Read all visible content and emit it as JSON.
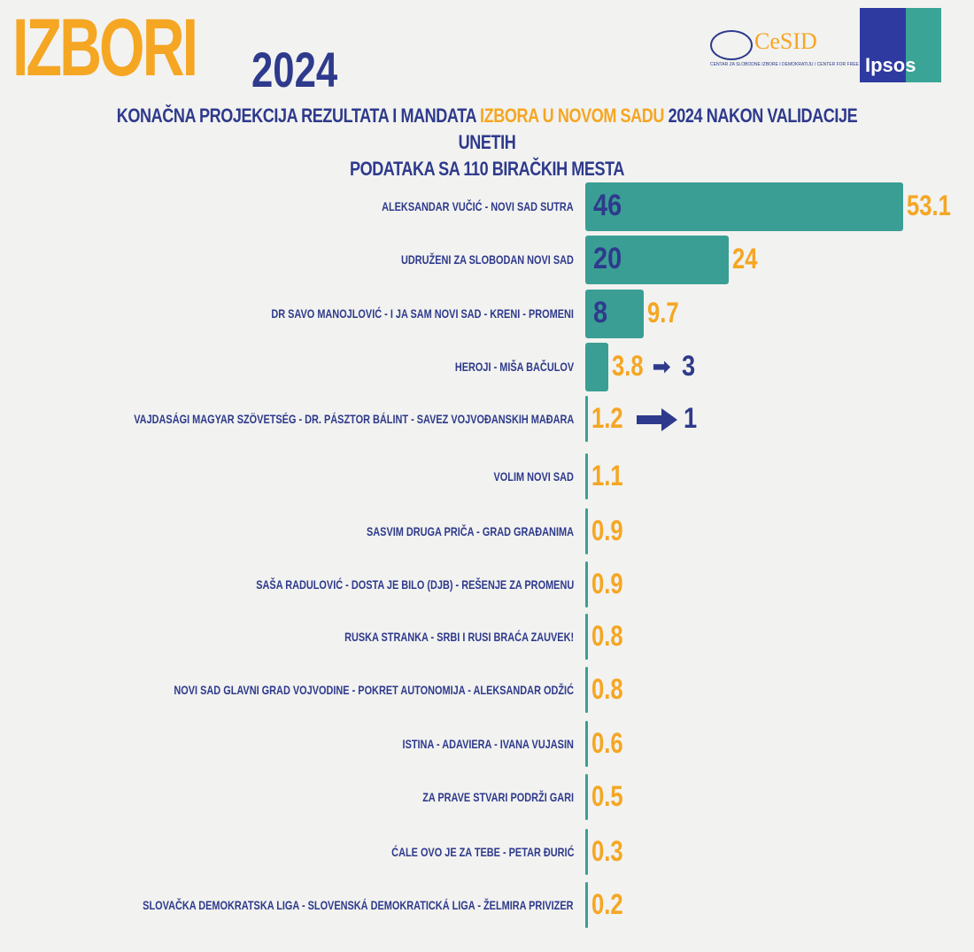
{
  "header": {
    "title_word": "IZBORI",
    "title_year": "2024",
    "subtitle_part1": "KONAČNA PROJEKCIJA REZULTATA I MANDATA ",
    "subtitle_highlight": "IZBORA U NOVOM SADU",
    "subtitle_part2": " 2024 NAKON VALIDACIJE UNETIH",
    "subtitle_line2": "PODATAKA SA 110 BIRAČKIH MESTA",
    "logos": [
      {
        "name": "CeSID",
        "text": "CeSID",
        "subtext": "CENTAR ZA SLOBODNE IZBORE I DEMOKRATIJU / CENTER FOR FREE ELECTIONS AND DEMOCRACY"
      },
      {
        "name": "Ipsos",
        "text": "Ipsos"
      }
    ]
  },
  "colors": {
    "bar": "#3a9e94",
    "navy": "#2e3a8c",
    "orange": "#f5a623",
    "background": "#f2f2f0"
  },
  "chart_data": {
    "type": "bar",
    "orientation": "horizontal",
    "xlim": [
      0,
      53.1
    ],
    "grid": false,
    "categories": [
      "ALEKSANDAR VUČIĆ - NOVI SAD SUTRA",
      "UDRUŽENI ZA SLOBODAN NOVI SAD",
      "DR SAVO MANOJLOVIĆ - I JA SAM NOVI SAD - KRENI - PROMENI",
      "HEROJI - MIŠA BAČULOV",
      "VAJDASÁGI MAGYAR SZÖVETSÉG - DR. PÁSZTOR BÁLINT - SAVEZ VOJVOĐANSKIH MAĐARA",
      "VOLIM NOVI SAD",
      "SASVIM DRUGA PRIČA - GRAD GRAĐANIMA",
      "SAŠA RADULOVIĆ - DOSTA JE BILO (DJB) - REŠENJE ZA PROMENU",
      "RUSKA STRANKA - SRBI I RUSI BRAĆA ZAUVEK!",
      "NOVI SAD GLAVNI GRAD VOJVODINE - POKRET AUTONOMIJA - ALEKSANDAR ODŽIĆ",
      "ISTINA - ADAVIERA - IVANA VUJASIN",
      "ZA PRAVE STVARI PODRŽI GARI",
      "ĆALE OVO JE ZA TEBE - PETAR ĐURIĆ",
      "SLOVAČKA DEMOKRATSKA LIGA - SLOVENSKÁ DEMOKRATICKÁ LIGA - ŽELMIRA PRIVIZER"
    ],
    "values": [
      53.1,
      24,
      9.7,
      3.8,
      1.2,
      1.1,
      0.9,
      0.9,
      0.8,
      0.8,
      0.6,
      0.5,
      0.3,
      0.2
    ],
    "value_labels": [
      "53.1",
      "24",
      "9.7",
      "3.8",
      "1.2",
      "1.1",
      "0.9",
      "0.9",
      "0.8",
      "0.8",
      "0.6",
      "0.5",
      "0.3",
      "0.2"
    ],
    "seats_in_bar": [
      "46",
      "20",
      "8",
      "",
      "",
      "",
      "",
      "",
      "",
      "",
      "",
      "",
      "",
      ""
    ],
    "seats_arrow": [
      "",
      "",
      "",
      "3",
      "1",
      "",
      "",
      "",
      "",
      "",
      "",
      "",
      "",
      ""
    ]
  }
}
